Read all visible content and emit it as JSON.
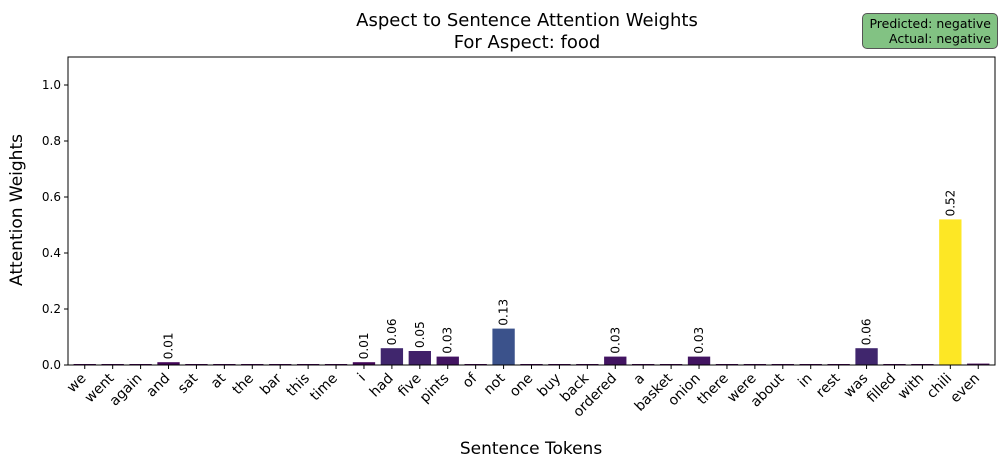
{
  "badge": {
    "predicted": "Predicted: negative",
    "actual": "Actual: negative"
  },
  "chart_data": {
    "type": "bar",
    "title": [
      "Aspect to Sentence Attention Weights",
      "For Aspect: food"
    ],
    "xlabel": "Sentence Tokens",
    "ylabel": "Attention Weights",
    "ylim": [
      0,
      1.1
    ],
    "yticks": [
      "0.0",
      "0.2",
      "0.4",
      "0.6",
      "0.8",
      "1.0"
    ],
    "grid": false,
    "categories": [
      "we",
      "went",
      "again",
      "and",
      "sat",
      "at",
      "the",
      "bar",
      "this",
      "time",
      "i",
      "had",
      "five",
      "pints",
      "of",
      "not",
      "one",
      "buy",
      "back",
      "ordered",
      "a",
      "basket",
      "onion",
      "there",
      "were",
      "about",
      "in",
      "rest",
      "was",
      "filled",
      "with",
      "chili",
      "even"
    ],
    "values": [
      0.001,
      0.003,
      0.001,
      0.01,
      0.001,
      0.001,
      0.001,
      0.001,
      0.001,
      0.001,
      0.01,
      0.06,
      0.05,
      0.03,
      0.001,
      0.13,
      0.001,
      0.001,
      0.001,
      0.03,
      0.001,
      0.001,
      0.03,
      0.001,
      0.001,
      0.001,
      0.001,
      0.001,
      0.06,
      0.001,
      0.001,
      0.52,
      0.005
    ],
    "data_labels": [
      {
        "index": 3,
        "text": "0.01"
      },
      {
        "index": 10,
        "text": "0.01"
      },
      {
        "index": 11,
        "text": "0.06"
      },
      {
        "index": 12,
        "text": "0.05"
      },
      {
        "index": 13,
        "text": "0.03"
      },
      {
        "index": 15,
        "text": "0.13"
      },
      {
        "index": 19,
        "text": "0.03"
      },
      {
        "index": 22,
        "text": "0.03"
      },
      {
        "index": 28,
        "text": "0.06"
      },
      {
        "index": 31,
        "text": "0.52"
      }
    ],
    "colormap": "viridis"
  }
}
